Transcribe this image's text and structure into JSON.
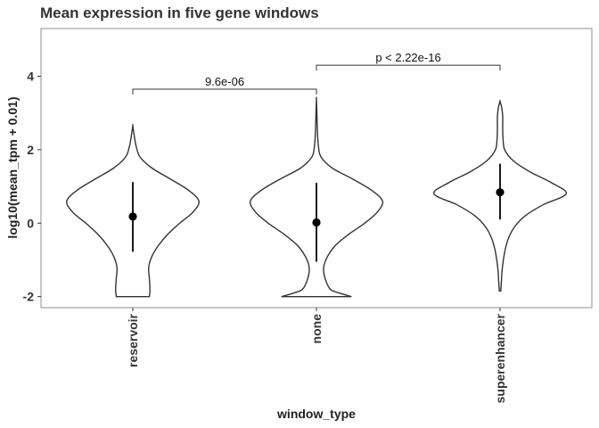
{
  "chart_data": {
    "type": "violin",
    "title": "Mean expression in five gene windows",
    "xlabel": "window_type",
    "ylabel": "log10(mean_tpm + 0.01)",
    "ylim": [
      -2.3,
      5.3
    ],
    "yticks": [
      -2,
      0,
      2,
      4
    ],
    "ytick_labels": [
      "-2",
      "0",
      "2",
      "4"
    ],
    "categories": [
      "reservoir",
      "none",
      "superenhancer"
    ],
    "grid": false,
    "series": [
      {
        "category": "reservoir",
        "mean": 0.18,
        "lower": -0.78,
        "upper": 1.12,
        "range": [
          -2.0,
          2.65
        ],
        "density": [
          [
            -2.0,
            0.25
          ],
          [
            -1.8,
            0.26
          ],
          [
            -1.5,
            0.25
          ],
          [
            -1.2,
            0.24
          ],
          [
            -0.9,
            0.29
          ],
          [
            -0.6,
            0.39
          ],
          [
            -0.3,
            0.53
          ],
          [
            0.0,
            0.71
          ],
          [
            0.3,
            0.91
          ],
          [
            0.6,
            1.0
          ],
          [
            0.9,
            0.84
          ],
          [
            1.2,
            0.57
          ],
          [
            1.5,
            0.29
          ],
          [
            1.8,
            0.11
          ],
          [
            2.1,
            0.05
          ],
          [
            2.4,
            0.02
          ],
          [
            2.65,
            0.0
          ]
        ]
      },
      {
        "category": "none",
        "mean": 0.02,
        "lower": -1.05,
        "upper": 1.1,
        "range": [
          -2.0,
          3.38
        ],
        "density": [
          [
            -2.0,
            0.53
          ],
          [
            -1.9,
            0.34
          ],
          [
            -1.8,
            0.21
          ],
          [
            -1.5,
            0.13
          ],
          [
            -1.2,
            0.11
          ],
          [
            -0.9,
            0.17
          ],
          [
            -0.6,
            0.29
          ],
          [
            -0.3,
            0.49
          ],
          [
            0.0,
            0.73
          ],
          [
            0.3,
            0.92
          ],
          [
            0.6,
            1.0
          ],
          [
            0.9,
            0.83
          ],
          [
            1.2,
            0.55
          ],
          [
            1.5,
            0.24
          ],
          [
            1.8,
            0.07
          ],
          [
            2.1,
            0.03
          ],
          [
            2.5,
            0.015
          ],
          [
            3.0,
            0.007
          ],
          [
            3.38,
            0.0
          ]
        ]
      },
      {
        "category": "superenhancer",
        "mean": 0.84,
        "lower": 0.1,
        "upper": 1.62,
        "range": [
          -1.85,
          3.32
        ],
        "density": [
          [
            -1.85,
            0.01
          ],
          [
            -1.6,
            0.02
          ],
          [
            -1.3,
            0.03
          ],
          [
            -1.0,
            0.05
          ],
          [
            -0.7,
            0.08
          ],
          [
            -0.4,
            0.13
          ],
          [
            -0.1,
            0.22
          ],
          [
            0.2,
            0.38
          ],
          [
            0.5,
            0.65
          ],
          [
            0.8,
            1.0
          ],
          [
            1.1,
            0.78
          ],
          [
            1.4,
            0.45
          ],
          [
            1.7,
            0.2
          ],
          [
            2.0,
            0.07
          ],
          [
            2.3,
            0.045
          ],
          [
            2.6,
            0.04
          ],
          [
            2.9,
            0.04
          ],
          [
            3.15,
            0.025
          ],
          [
            3.32,
            0.0
          ]
        ]
      }
    ],
    "comparisons": [
      {
        "from": "reservoir",
        "to": "none",
        "label": "9.6e-06",
        "y": 3.65
      },
      {
        "from": "none",
        "to": "superenhancer",
        "label": "p < 2.22e-16",
        "y": 4.3
      }
    ]
  }
}
